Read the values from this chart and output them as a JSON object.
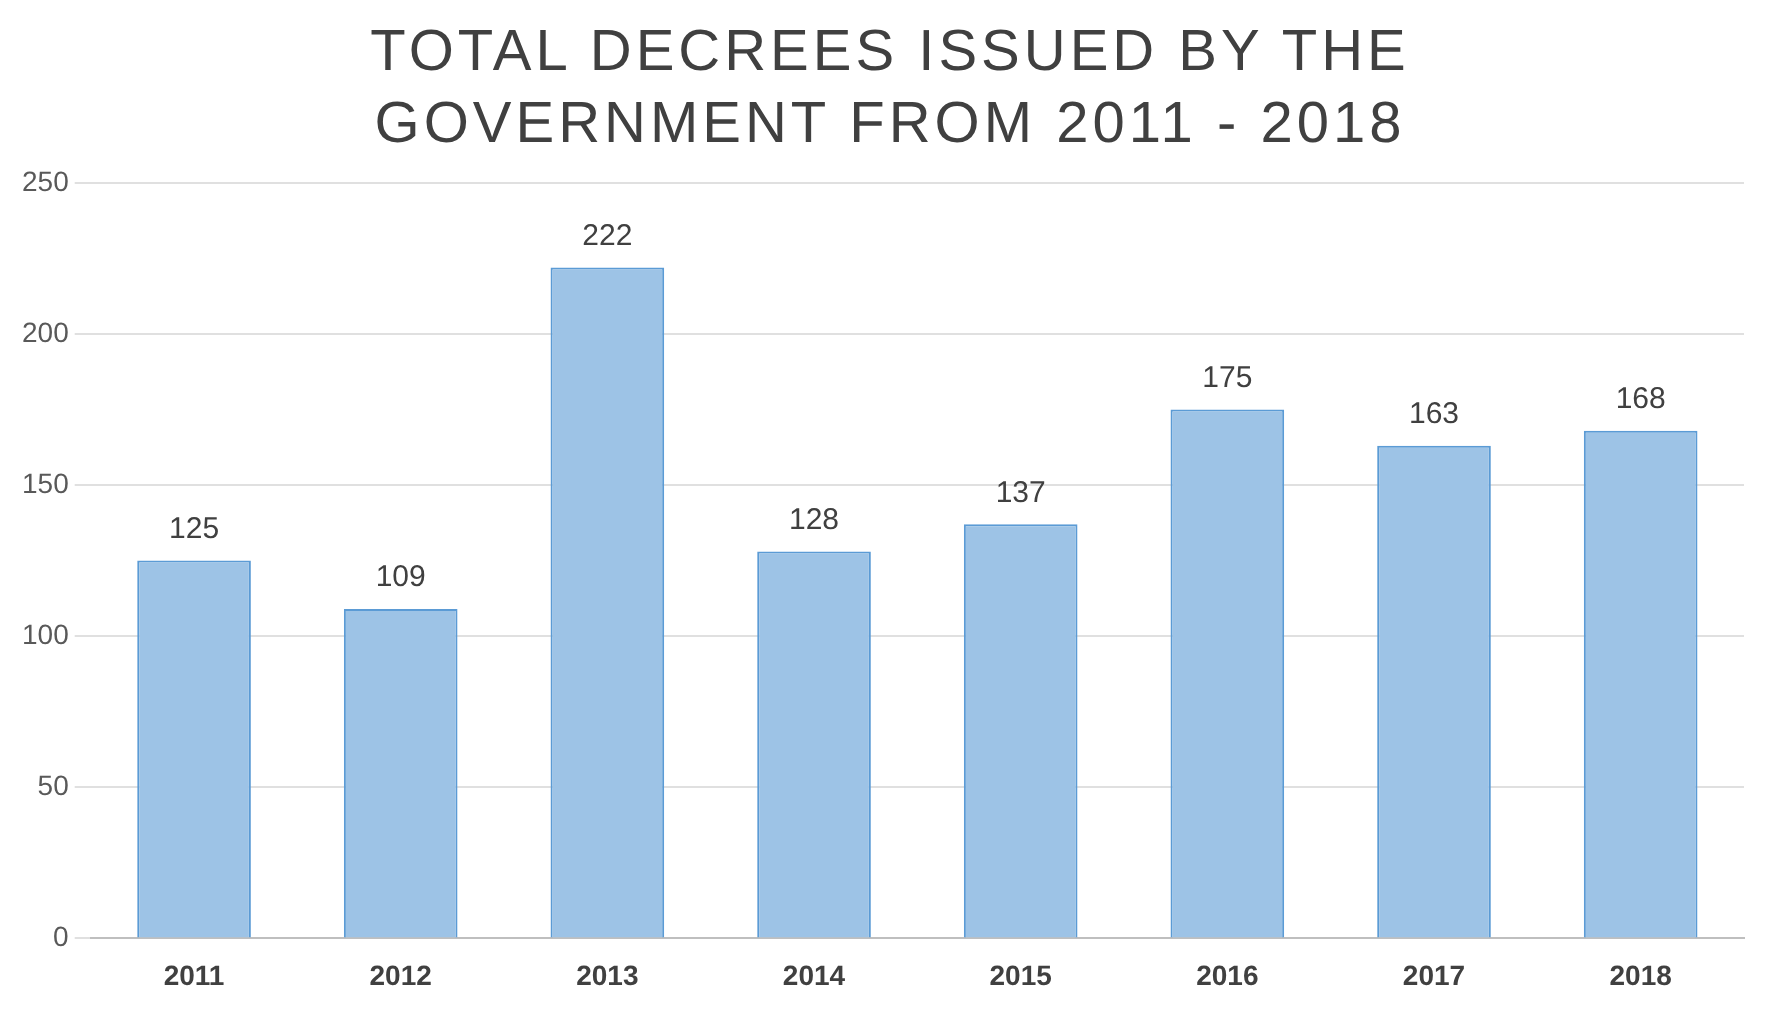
{
  "chart_data": {
    "type": "bar",
    "title": "TOTAL DECREES ISSUED BY THE GOVERNMENT FROM 2011 - 2018",
    "categories": [
      "2011",
      "2012",
      "2013",
      "2014",
      "2015",
      "2016",
      "2017",
      "2018"
    ],
    "values": [
      125,
      109,
      222,
      128,
      137,
      175,
      163,
      168
    ],
    "color": "#9dc3e6",
    "ylim": [
      0,
      250
    ],
    "yticks": [
      0,
      50,
      100,
      150,
      200,
      250
    ],
    "grid": "y",
    "data_labels": true,
    "legend": false
  }
}
